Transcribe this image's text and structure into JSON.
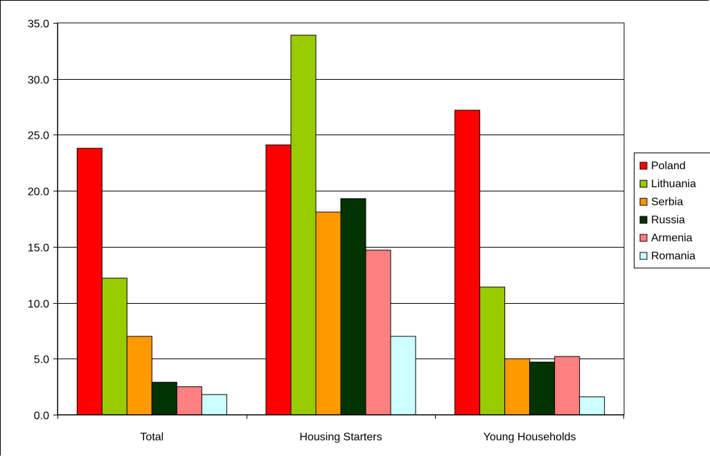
{
  "chart_data": {
    "type": "bar",
    "categories": [
      "Total",
      "Housing Starters",
      "Young Households"
    ],
    "ylim": [
      0,
      35
    ],
    "yticks": [
      "0.0",
      "5.0",
      "10.0",
      "15.0",
      "20.0",
      "25.0",
      "30.0",
      "35.0"
    ],
    "grid": true,
    "legend_position": "right",
    "series": [
      {
        "name": "Poland",
        "color": "#ff0000",
        "values": [
          23.8,
          24.1,
          27.2
        ]
      },
      {
        "name": "Lithuania",
        "color": "#99cc00",
        "values": [
          12.2,
          33.9,
          11.4
        ]
      },
      {
        "name": "Serbia",
        "color": "#ff9900",
        "values": [
          7.0,
          18.1,
          5.0
        ]
      },
      {
        "name": "Russia",
        "color": "#003300",
        "values": [
          2.9,
          19.3,
          4.7
        ]
      },
      {
        "name": "Armenia",
        "color": "#ff8080",
        "values": [
          2.5,
          14.7,
          5.2
        ]
      },
      {
        "name": "Romania",
        "color": "#ccffff",
        "values": [
          1.8,
          7.0,
          1.6
        ]
      }
    ]
  }
}
